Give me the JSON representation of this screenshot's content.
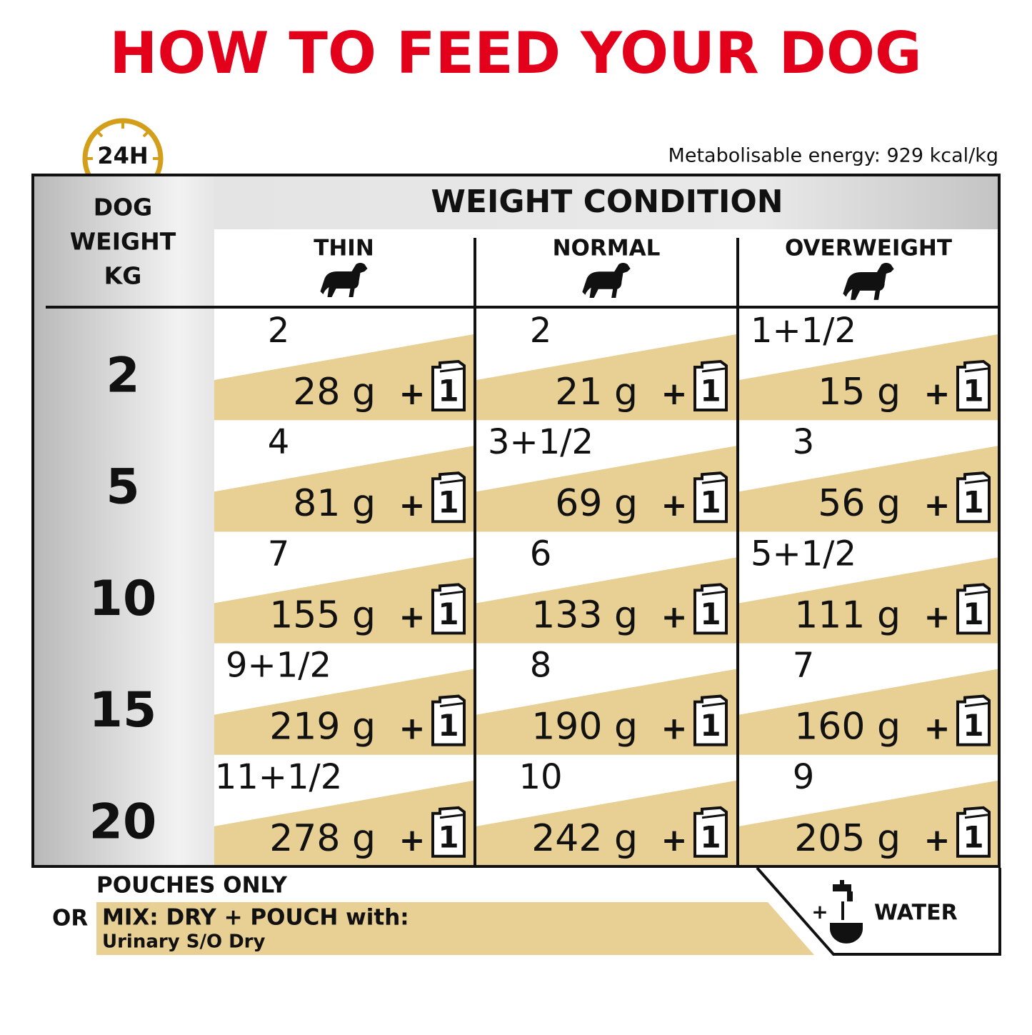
{
  "header": {
    "title": "HOW TO FEED YOUR DOG",
    "badge": "24H",
    "energy": "Metabolisable energy: 929 kcal/kg"
  },
  "table": {
    "row_header": [
      "DOG",
      "WEIGHT",
      "KG"
    ],
    "column_group": "WEIGHT CONDITION",
    "columns": [
      "THIN",
      "NORMAL",
      "OVERWEIGHT"
    ],
    "plus": "+",
    "pouch_label": "1",
    "rows": [
      {
        "weight": "2",
        "cells": [
          {
            "pouches": "2",
            "dry": "28 g"
          },
          {
            "pouches": "2",
            "dry": "21 g"
          },
          {
            "pouches": "1+1/2",
            "dry": "15 g"
          }
        ]
      },
      {
        "weight": "5",
        "cells": [
          {
            "pouches": "4",
            "dry": "81 g"
          },
          {
            "pouches": "3+1/2",
            "dry": "69 g"
          },
          {
            "pouches": "3",
            "dry": "56 g"
          }
        ]
      },
      {
        "weight": "10",
        "cells": [
          {
            "pouches": "7",
            "dry": "155 g"
          },
          {
            "pouches": "6",
            "dry": "133 g"
          },
          {
            "pouches": "5+1/2",
            "dry": "111 g"
          }
        ]
      },
      {
        "weight": "15",
        "cells": [
          {
            "pouches": "9+1/2",
            "dry": "219 g"
          },
          {
            "pouches": "8",
            "dry": "190 g"
          },
          {
            "pouches": "7",
            "dry": "160 g"
          }
        ]
      },
      {
        "weight": "20",
        "cells": [
          {
            "pouches": "11+1/2",
            "dry": "278 g"
          },
          {
            "pouches": "10",
            "dry": "242 g"
          },
          {
            "pouches": "9",
            "dry": "205 g"
          }
        ]
      }
    ]
  },
  "footer": {
    "pouches_only": "POUCHES ONLY",
    "or": "OR",
    "mix": "MIX: DRY + POUCH with:",
    "dry_product": "Urinary S/O Dry",
    "plus": "+",
    "water": "WATER"
  }
}
